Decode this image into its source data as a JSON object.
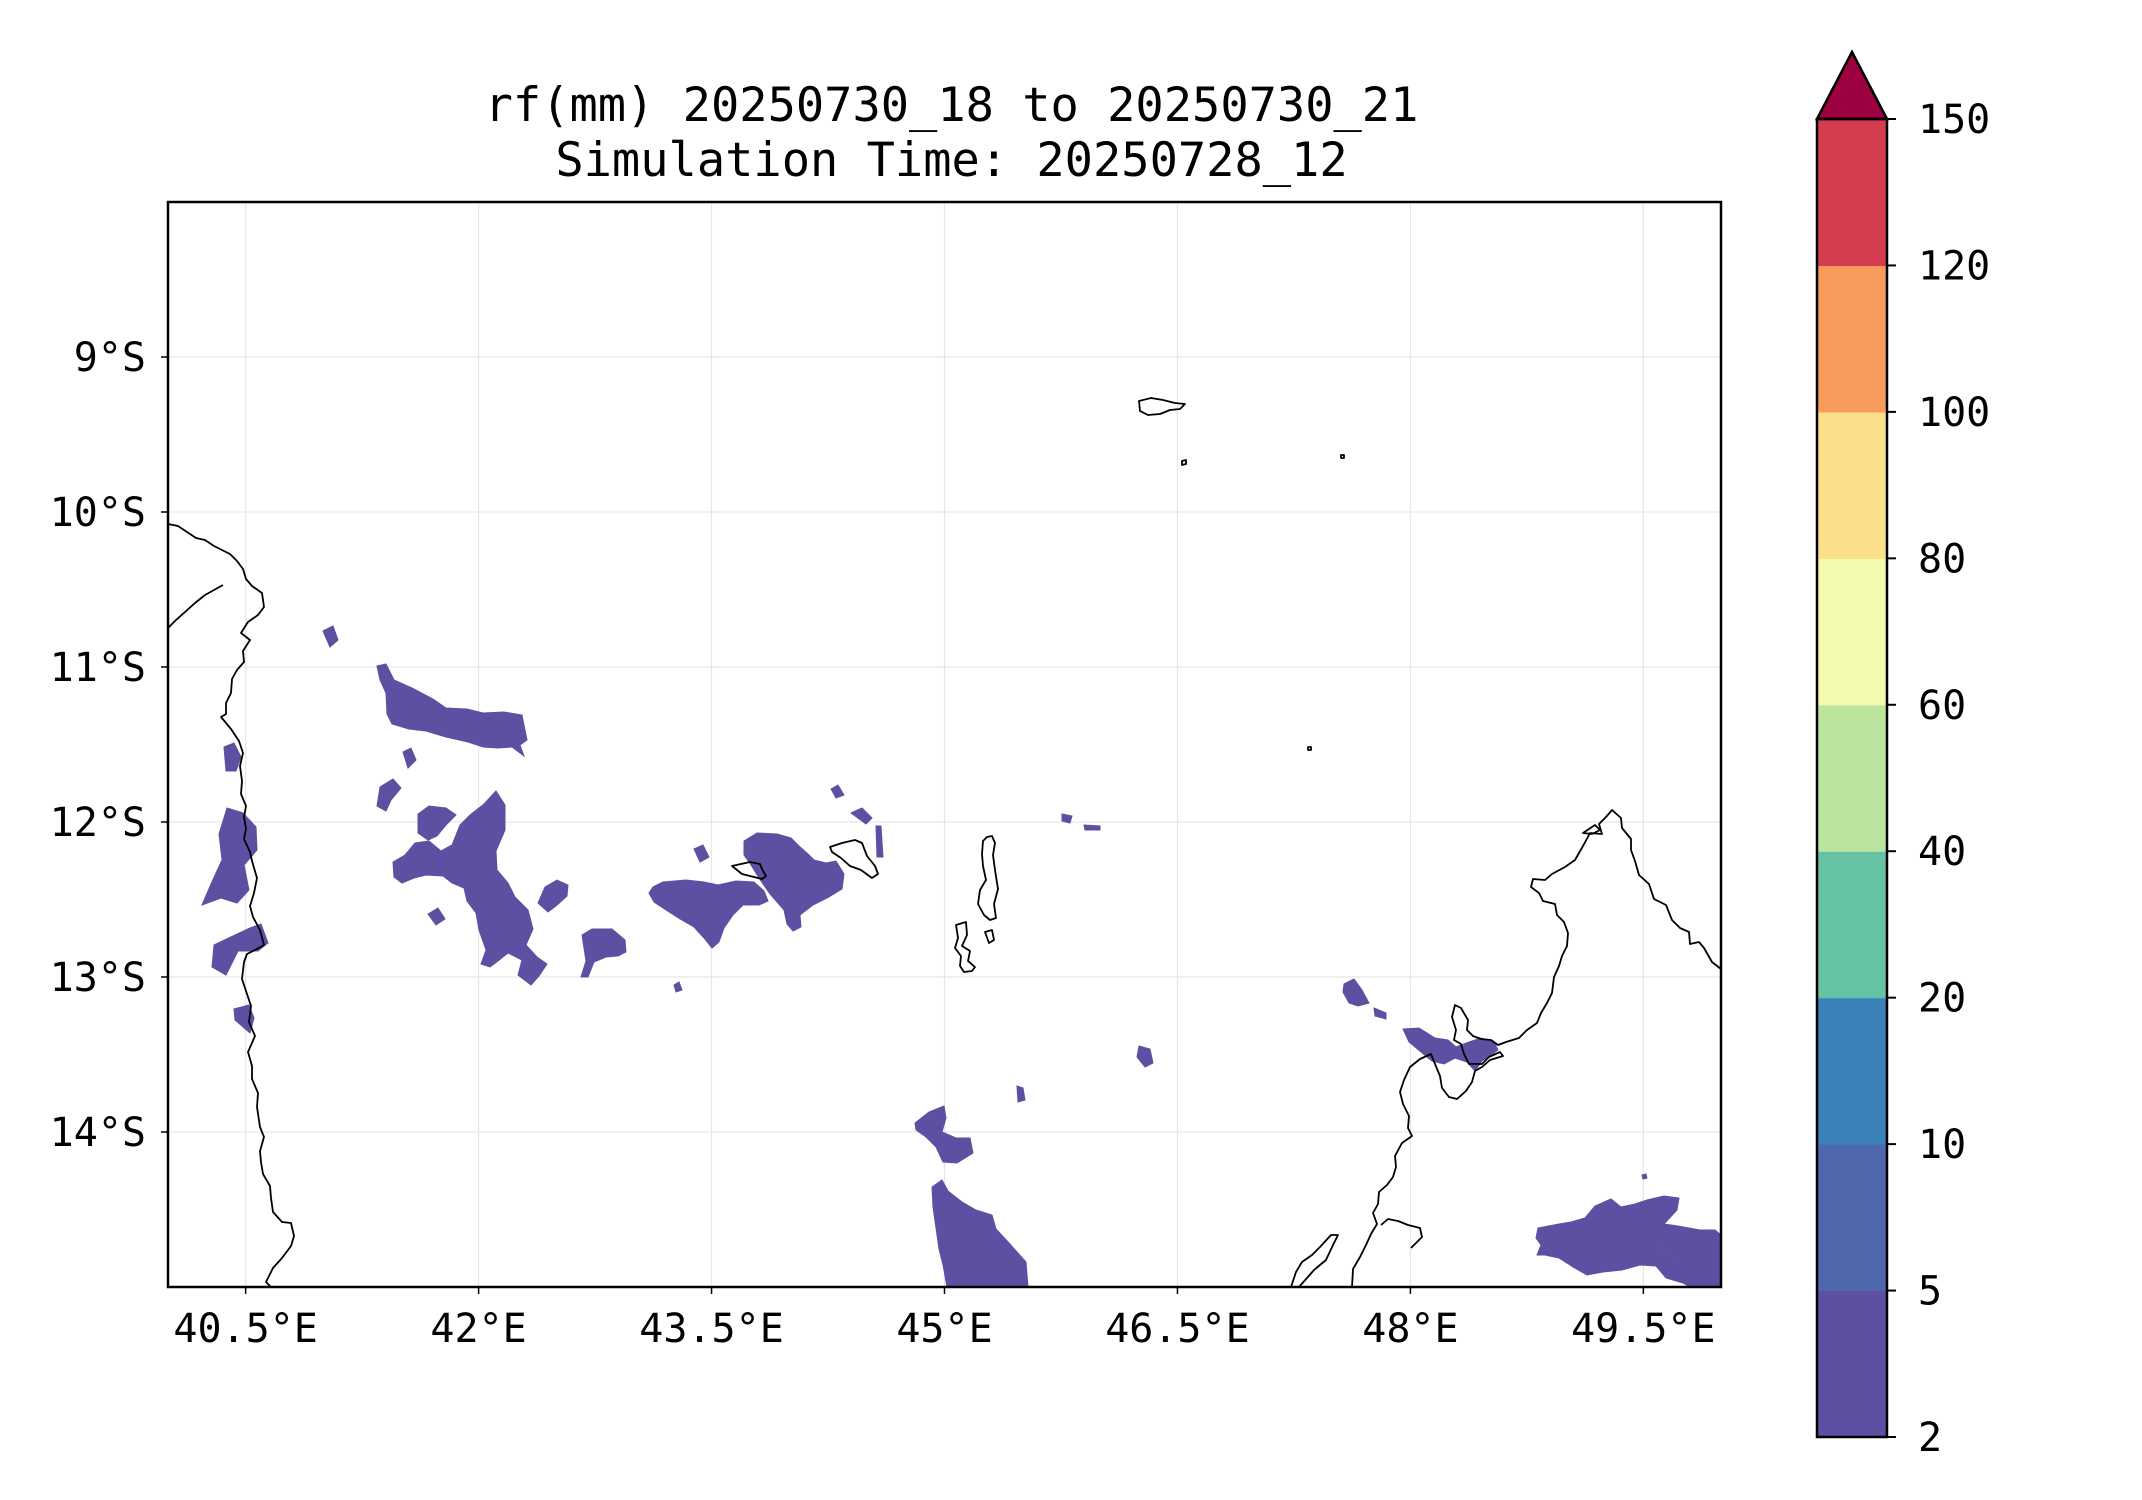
{
  "title": {
    "line1": "rf(mm) 20250730_18 to 20250730_21",
    "line2": "Simulation Time: 20250728_12"
  },
  "map": {
    "extent_lon": [
      40.0,
      50.0
    ],
    "extent_lat": [
      -15.0,
      -8.0
    ],
    "x_ticks": [
      "40.5°E",
      "42°E",
      "43.5°E",
      "45°E",
      "46.5°E",
      "48°E",
      "49.5°E"
    ],
    "y_ticks": [
      "9°S",
      "10°S",
      "11°S",
      "12°S",
      "13°S",
      "14°S"
    ],
    "gridlines": true,
    "coastline_color": "#000000",
    "precip_color": "#5e4fa2"
  },
  "colorbar": {
    "label": "",
    "levels": [
      "2",
      "5",
      "10",
      "20",
      "40",
      "60",
      "80",
      "100",
      "120",
      "150"
    ],
    "colors": [
      "#5e4fa2",
      "#4f68ad",
      "#3a80b9",
      "#66c2a5",
      "#bbe49f",
      "#f4faad",
      "#fbdf8b",
      "#f99b5c",
      "#d43d4f"
    ],
    "extend_color": "#9e0142",
    "extend": "max"
  }
}
